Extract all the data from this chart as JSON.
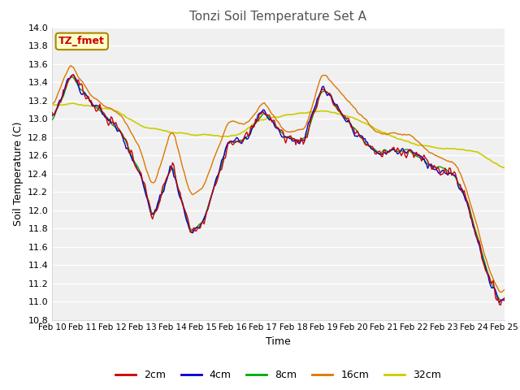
{
  "title": "Tonzi Soil Temperature Set A",
  "xlabel": "Time",
  "ylabel": "Soil Temperature (C)",
  "ylim": [
    10.8,
    13.9
  ],
  "xlim": [
    0,
    360
  ],
  "x_tick_labels": [
    "Feb 10",
    "Feb 11",
    "Feb 12",
    "Feb 13",
    "Feb 14",
    "Feb 15",
    "Feb 16",
    "Feb 17",
    "Feb 18",
    "Feb 19",
    "Feb 20",
    "Feb 21",
    "Feb 22",
    "Feb 23",
    "Feb 24",
    "Feb 25"
  ],
  "x_tick_positions": [
    0,
    24,
    48,
    72,
    96,
    120,
    144,
    168,
    192,
    216,
    240,
    264,
    288,
    312,
    336,
    360
  ],
  "line_colors": [
    "#cc0000",
    "#0000cc",
    "#00aa00",
    "#dd7700",
    "#cccc00"
  ],
  "line_labels": [
    "2cm",
    "4cm",
    "8cm",
    "16cm",
    "32cm"
  ],
  "line_widths": [
    1.0,
    1.0,
    1.0,
    1.0,
    1.2
  ],
  "fig_bg": "#ffffff",
  "plot_bg": "#f0f0f0",
  "grid_color": "#ffffff",
  "annotation_text": "TZ_fmet",
  "annotation_color": "#cc0000",
  "annotation_bg": "#ffffcc",
  "annotation_border": "#aa8800",
  "title_color": "#555555"
}
